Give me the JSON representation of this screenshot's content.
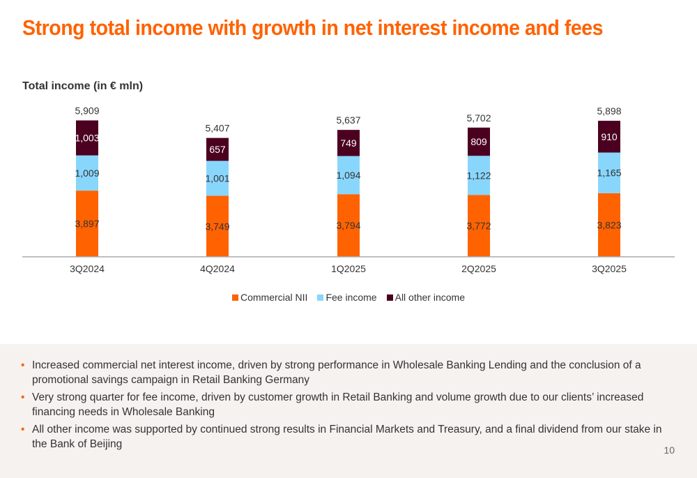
{
  "title": "Strong total income with growth in net interest income and fees",
  "chart_data": {
    "type": "bar",
    "stacked": true,
    "subtitle": "Total income (in € mln)",
    "categories": [
      "3Q2024",
      "4Q2024",
      "1Q2025",
      "2Q2025",
      "3Q2025"
    ],
    "series": [
      {
        "name": "Commercial NII",
        "color": "#ff6200",
        "values": [
          3897,
          3749,
          3794,
          3772,
          3823
        ]
      },
      {
        "name": "Fee income",
        "color": "#89d6fd",
        "values": [
          1009,
          1001,
          1094,
          1122,
          1165
        ]
      },
      {
        "name": "All other income",
        "color": "#4b0020",
        "values": [
          1003,
          657,
          749,
          809,
          910
        ]
      }
    ],
    "totals": [
      5909,
      5407,
      5637,
      5702,
      5898
    ],
    "legend": "bottom"
  },
  "bullets": [
    "Increased commercial net interest income, driven by strong performance in Wholesale Banking Lending and the conclusion of a promotional savings campaign in Retail Banking Germany",
    "Very strong quarter for fee income, driven by customer growth in Retail Banking and volume growth due to our clients’ increased financing needs in Wholesale Banking",
    "All other income was supported by continued strong results in Financial Markets and Treasury, and a final dividend from our stake in the Bank of Beijing"
  ],
  "page_number": "10"
}
